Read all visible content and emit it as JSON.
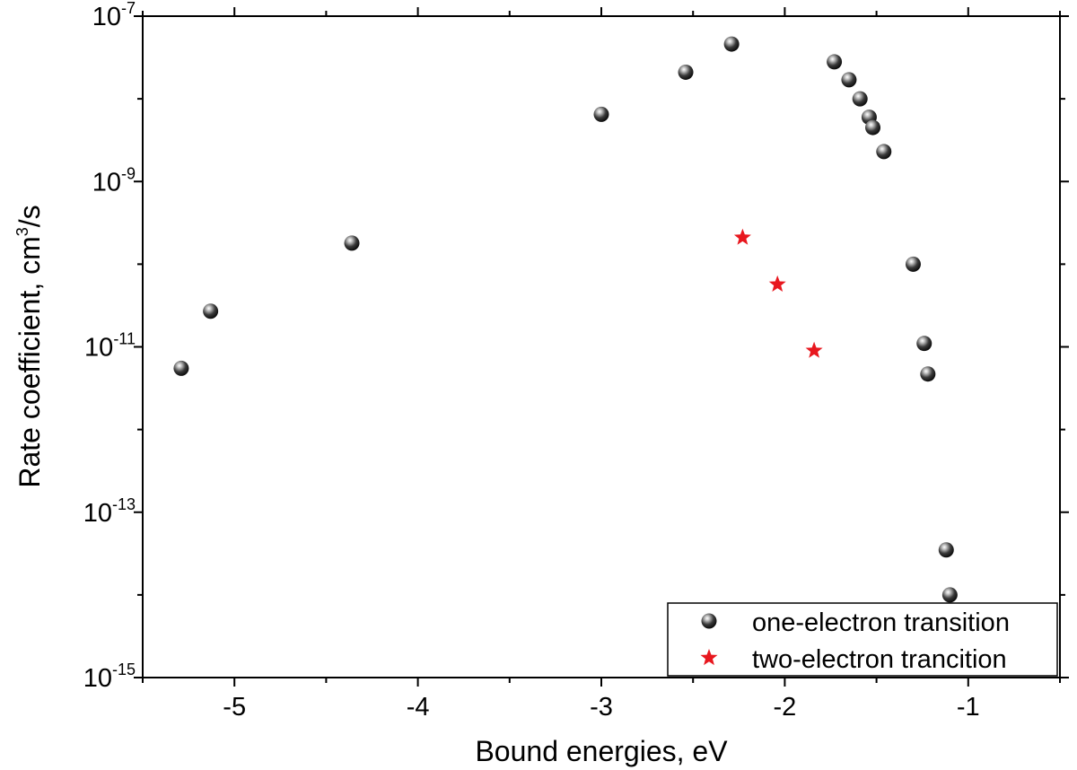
{
  "chart_data": {
    "type": "scatter",
    "title": "",
    "xlabel": "Bound energies, eV",
    "ylabel_base": "Rate coefficient, cm",
    "ylabel_sup": "3",
    "ylabel_suffix": "/s",
    "xlim": [
      -5.5,
      -0.5
    ],
    "ylim": [
      1e-15,
      1e-07
    ],
    "yscale": "log",
    "grid": false,
    "x_ticks": [
      -5,
      -4,
      -3,
      -2,
      -1
    ],
    "x_tick_labels": [
      "-5",
      "-4",
      "-3",
      "-2",
      "-1"
    ],
    "y_ticks": [
      1e-15,
      1e-13,
      1e-11,
      1e-09,
      1e-07
    ],
    "y_tick_labels": [
      {
        "base": "10",
        "exp": "-15"
      },
      {
        "base": "10",
        "exp": "-13"
      },
      {
        "base": "10",
        "exp": "-11"
      },
      {
        "base": "10",
        "exp": "-9"
      },
      {
        "base": "10",
        "exp": "-7"
      }
    ],
    "legend_position": "bottom-right",
    "series": [
      {
        "name": "one-electron transition",
        "marker": "sphere",
        "color": "#000000",
        "points": [
          {
            "x": -5.29,
            "y": 5.5e-12
          },
          {
            "x": -5.13,
            "y": 2.7e-11
          },
          {
            "x": -4.36,
            "y": 1.8e-10
          },
          {
            "x": -3.0,
            "y": 6.5e-09
          },
          {
            "x": -2.54,
            "y": 2.1e-08
          },
          {
            "x": -2.29,
            "y": 4.6e-08
          },
          {
            "x": -1.73,
            "y": 2.8e-08
          },
          {
            "x": -1.65,
            "y": 1.7e-08
          },
          {
            "x": -1.59,
            "y": 1e-08
          },
          {
            "x": -1.54,
            "y": 6e-09
          },
          {
            "x": -1.52,
            "y": 4.5e-09
          },
          {
            "x": -1.46,
            "y": 2.3e-09
          },
          {
            "x": -1.3,
            "y": 1e-10
          },
          {
            "x": -1.24,
            "y": 1.1e-11
          },
          {
            "x": -1.22,
            "y": 4.7e-12
          },
          {
            "x": -1.12,
            "y": 3.5e-14
          },
          {
            "x": -1.1,
            "y": 1e-14
          }
        ]
      },
      {
        "name": "two-electron trancition",
        "marker": "star",
        "color": "#e8171e",
        "points": [
          {
            "x": -2.23,
            "y": 2.1e-10
          },
          {
            "x": -2.04,
            "y": 5.7e-11
          },
          {
            "x": -1.84,
            "y": 9e-12
          }
        ]
      }
    ]
  }
}
